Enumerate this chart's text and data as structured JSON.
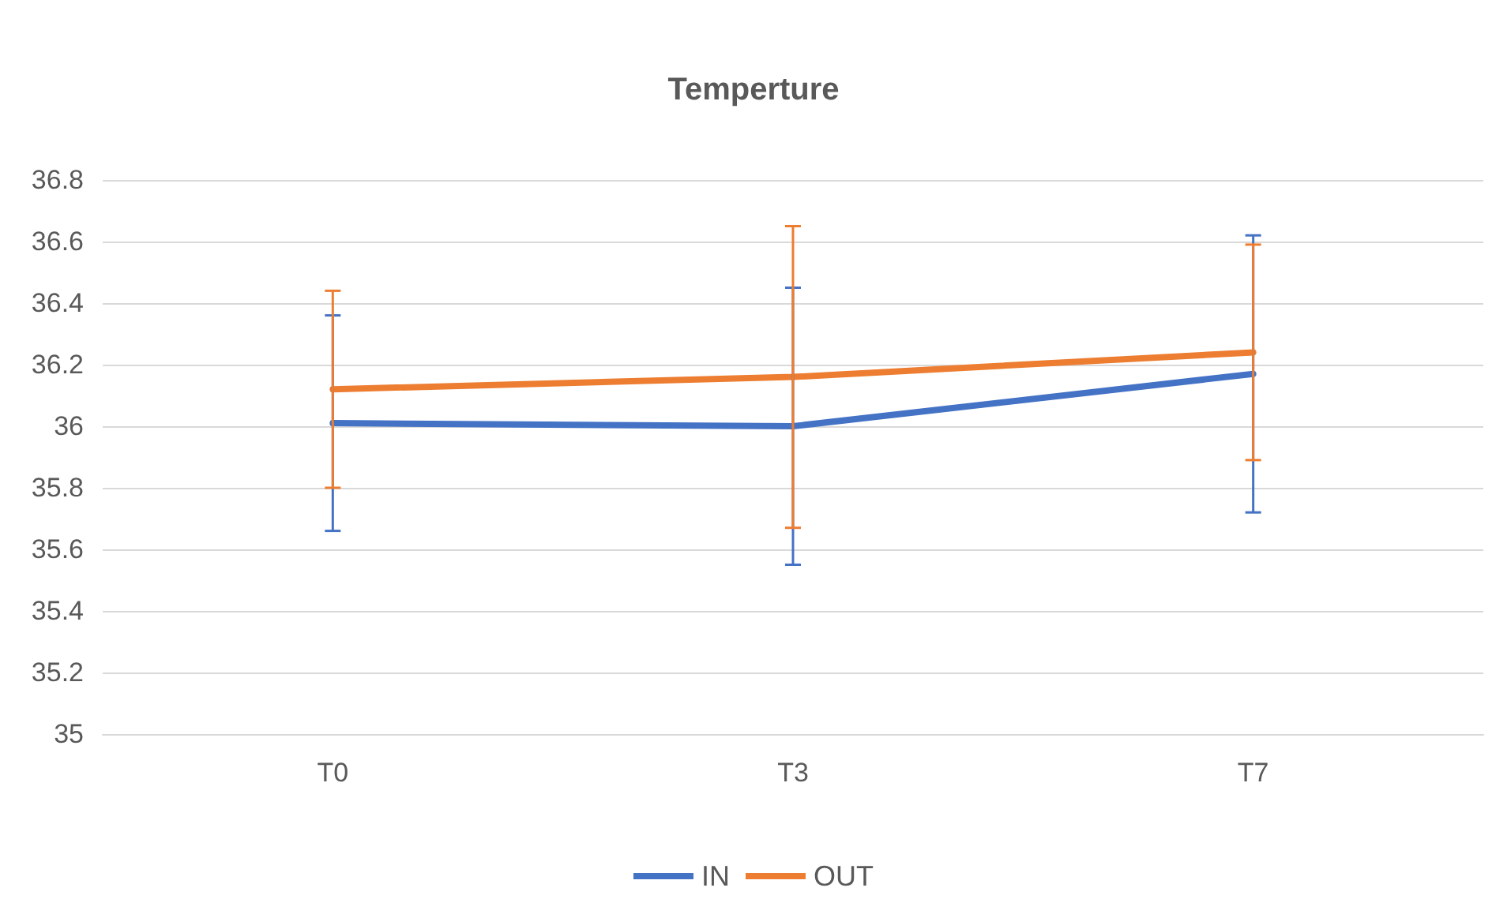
{
  "chart_data": {
    "type": "line",
    "title": "Temperture",
    "categories": [
      "T0",
      "T3",
      "T7"
    ],
    "series": [
      {
        "name": "IN",
        "color": "#4472c4",
        "values": [
          36.01,
          36.0,
          36.17
        ],
        "errors": [
          0.35,
          0.45,
          0.45
        ]
      },
      {
        "name": "OUT",
        "color": "#ed7d31",
        "values": [
          36.12,
          36.16,
          36.24
        ],
        "errors": [
          0.32,
          0.49,
          0.35
        ]
      }
    ],
    "ylim": [
      35,
      36.8
    ],
    "yticks": [
      35,
      35.2,
      35.4,
      35.6,
      35.8,
      36,
      36.2,
      36.4,
      36.6,
      36.8
    ],
    "grid": "y",
    "legend": "bottom",
    "marker": "none",
    "line_style": "solid"
  }
}
